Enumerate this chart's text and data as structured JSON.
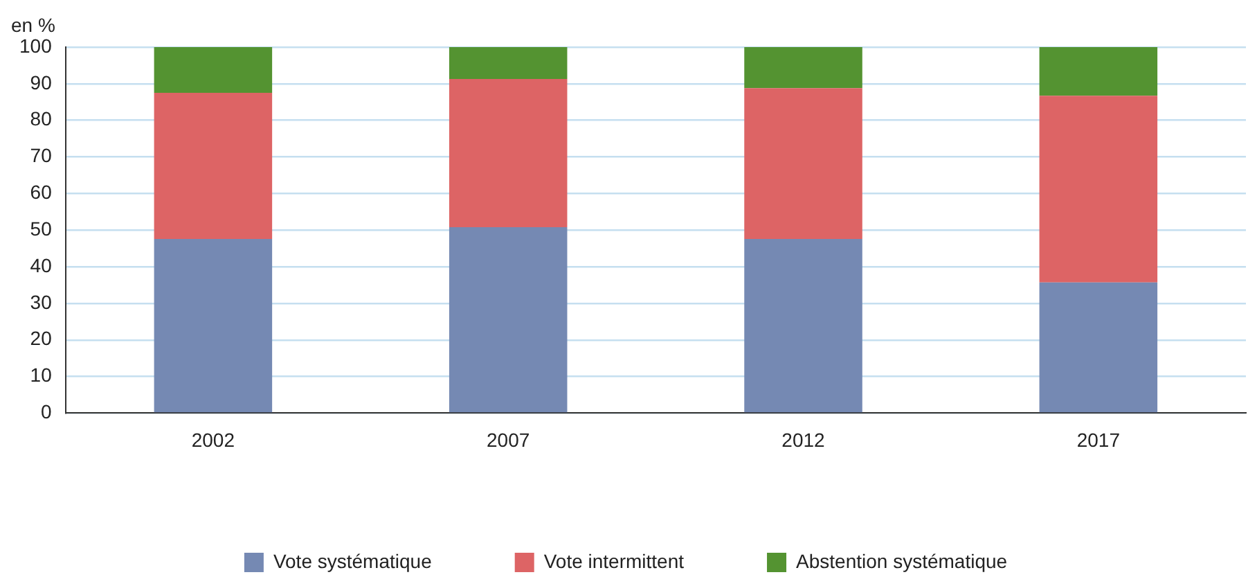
{
  "chart_data": {
    "type": "bar",
    "stacked": true,
    "ylabel": "en %",
    "categories": [
      "2002",
      "2007",
      "2012",
      "2017"
    ],
    "series": [
      {
        "name": "Vote systématique",
        "color": "#7589b3",
        "values": [
          47.6,
          50.8,
          47.6,
          35.7
        ]
      },
      {
        "name": "Vote intermittent",
        "color": "#dd6465",
        "values": [
          39.9,
          40.5,
          41.2,
          51.0
        ]
      },
      {
        "name": "Abstention systématique",
        "color": "#549331",
        "values": [
          12.5,
          8.7,
          11.2,
          13.3
        ]
      }
    ],
    "ylim": [
      0,
      100
    ],
    "yticks": [
      0,
      10,
      20,
      30,
      40,
      50,
      60,
      70,
      80,
      90,
      100
    ],
    "grid": "y",
    "legend": "bottom"
  }
}
